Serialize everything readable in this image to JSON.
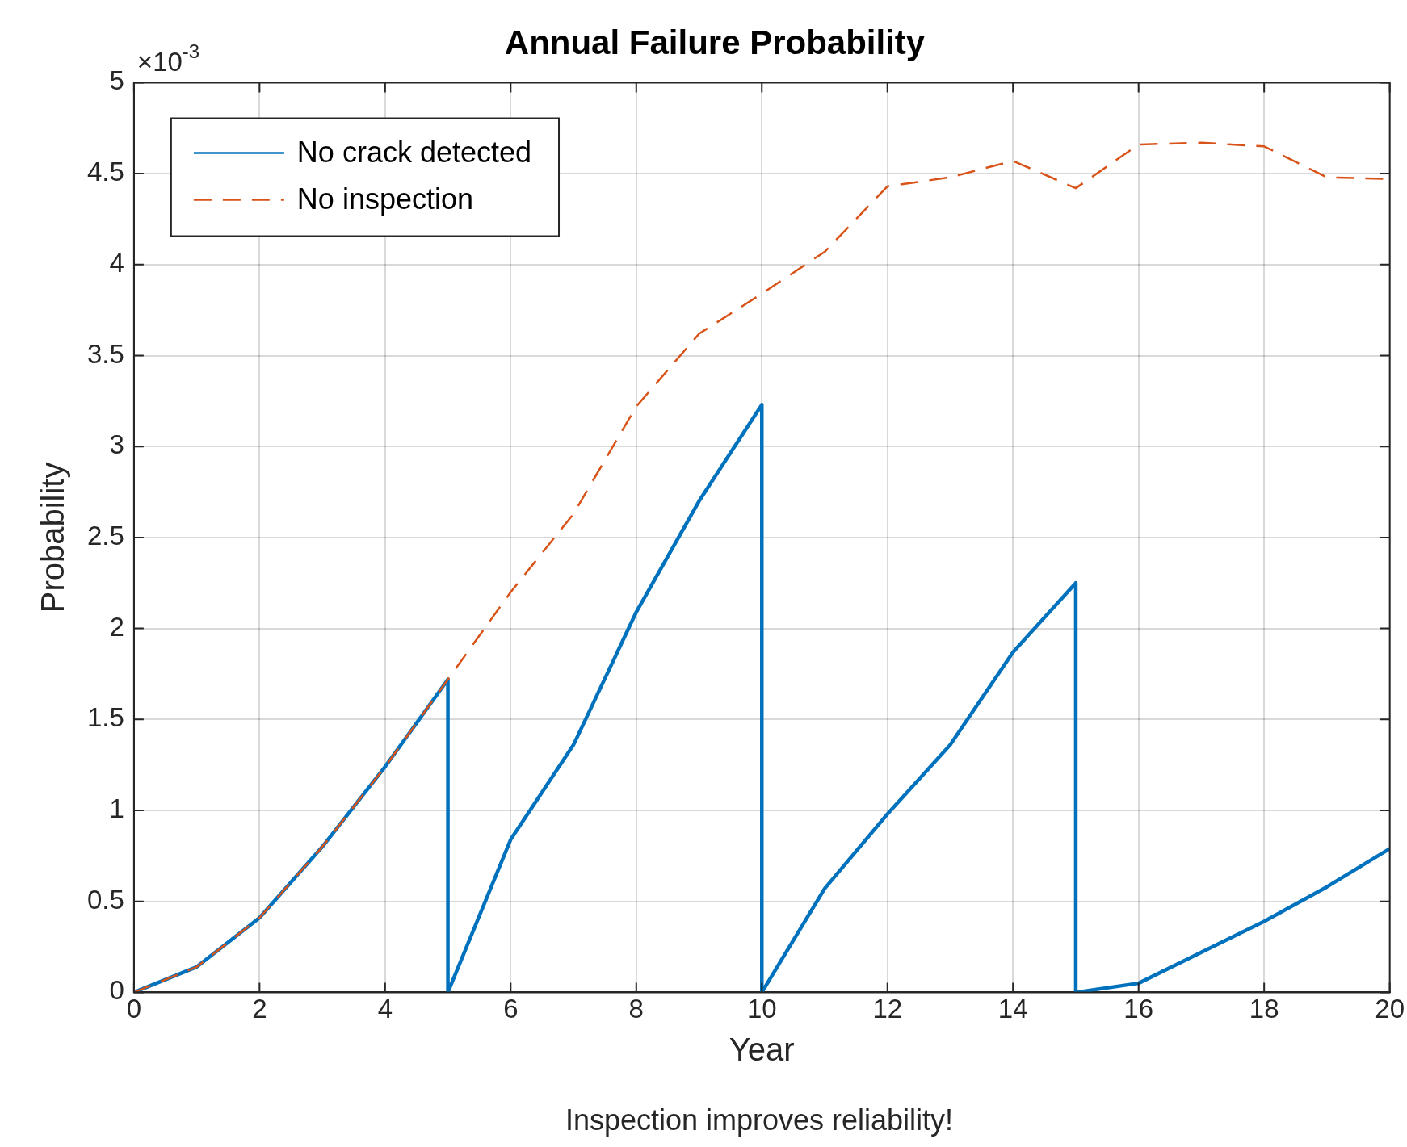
{
  "chart_data": {
    "type": "line",
    "title": "Annual Failure Probability",
    "xlabel": "Year",
    "ylabel": "Probability",
    "annotations": [
      "×10$^{-3}$",
      "Inspection improves reliability!"
    ],
    "xlim": [
      0,
      20
    ],
    "xticks": [
      0,
      2,
      4,
      6,
      8,
      10,
      12,
      14,
      16,
      18,
      20
    ],
    "ylim": [
      0,
      5
    ],
    "yticks": [
      0,
      0.5,
      1,
      1.5,
      2,
      2.5,
      3,
      3.5,
      4,
      4.5,
      5
    ],
    "grid": true,
    "legend": "top left",
    "series": [
      {
        "name": "No crack detected",
        "color": "#0072bd",
        "line_style": "solid",
        "x": [
          0,
          1,
          2,
          3,
          4,
          5,
          5,
          6,
          7,
          8,
          9,
          10,
          10,
          11,
          12,
          13,
          14,
          15,
          15,
          16,
          17,
          18,
          19,
          20
        ],
        "values": [
          0,
          0.14,
          0.41,
          0.8,
          1.24,
          1.72,
          0,
          0.84,
          1.36,
          2.09,
          2.7,
          3.23,
          0,
          0.57,
          0.98,
          1.36,
          1.87,
          2.25,
          0,
          0.05,
          0.22,
          0.39,
          0.58,
          0.79
        ]
      },
      {
        "name": "No inspection",
        "color": "#d95319",
        "line_style": "dashed",
        "x": [
          0,
          1,
          2,
          3,
          4,
          5,
          6,
          7,
          8,
          9,
          10,
          11,
          12,
          13,
          14,
          15,
          16,
          17,
          18,
          19,
          20
        ],
        "values": [
          0,
          0.14,
          0.41,
          0.8,
          1.24,
          1.72,
          2.2,
          2.63,
          3.22,
          3.62,
          3.84,
          4.07,
          4.43,
          4.48,
          4.57,
          4.42,
          4.66,
          4.67,
          4.65,
          4.48,
          4.47
        ]
      }
    ]
  }
}
